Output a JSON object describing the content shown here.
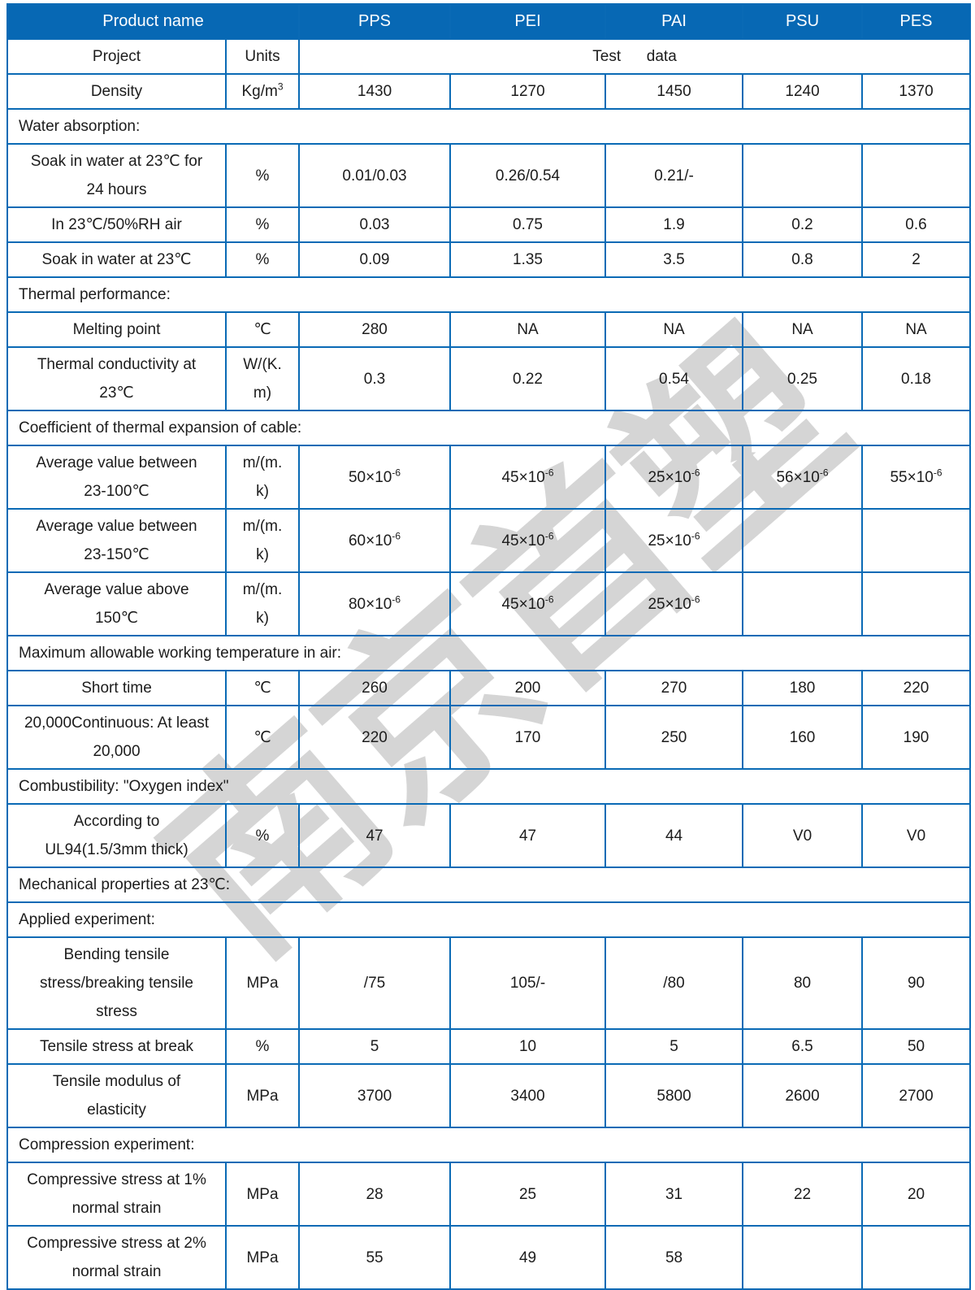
{
  "colors": {
    "header_bg": "#0768b4",
    "border": "#0a6ab5",
    "text": "#1c1c1c",
    "header_text": "#ffffff",
    "watermark": "#d5d5d5"
  },
  "watermark": {
    "text": "南京首塑"
  },
  "table": {
    "header": {
      "product_label": "Product name",
      "columns": [
        "PPS",
        "PEI",
        "PAI",
        "PSU",
        "PES"
      ]
    },
    "subheader": {
      "project": "Project",
      "units": "Units",
      "test_data": "Test      data"
    },
    "rows": [
      {
        "type": "data",
        "label": "Density",
        "unit": "Kg/m^3",
        "values": [
          "1430",
          "1270",
          "1450",
          "1240",
          "1370"
        ]
      },
      {
        "type": "section",
        "label": "Water absorption:"
      },
      {
        "type": "data",
        "label": "Soak in water at 23℃ for\n24 hours",
        "unit": "%",
        "values": [
          "0.01/0.03",
          "0.26/0.54",
          "0.21/-",
          "",
          ""
        ]
      },
      {
        "type": "data",
        "label": "In 23℃/50%RH air",
        "unit": "%",
        "values": [
          "0.03",
          "0.75",
          "1.9",
          "0.2",
          "0.6"
        ]
      },
      {
        "type": "data",
        "label": "Soak in water at 23℃",
        "unit": "%",
        "values": [
          "0.09",
          "1.35",
          "3.5",
          "0.8",
          "2"
        ]
      },
      {
        "type": "section",
        "label": "Thermal performance:"
      },
      {
        "type": "data",
        "label": "Melting point",
        "unit": "℃",
        "values": [
          "280",
          "NA",
          "NA",
          "NA",
          "NA"
        ]
      },
      {
        "type": "data",
        "label": "Thermal conductivity at\n23℃",
        "unit": "W/(K.\nm)",
        "values": [
          "0.3",
          "0.22",
          "0.54",
          "0.25",
          "0.18"
        ]
      },
      {
        "type": "section",
        "label": "Coefficient of thermal expansion of cable:"
      },
      {
        "type": "data",
        "label": "Average value between\n23-100℃",
        "unit": "m/(m.\nk)",
        "values": [
          "50×10^-6",
          "45×10^-6",
          "25×10^-6",
          "56×10^-6",
          "55×10^-6"
        ]
      },
      {
        "type": "data",
        "label": "Average value between\n23-150℃",
        "unit": "m/(m.\nk)",
        "values": [
          "60×10^-6",
          "45×10^-6",
          "25×10^-6",
          "",
          ""
        ]
      },
      {
        "type": "data",
        "label": "Average value above\n150℃",
        "unit": "m/(m.\nk)",
        "values": [
          "80×10^-6",
          "45×10^-6",
          "25×10^-6",
          "",
          ""
        ]
      },
      {
        "type": "section",
        "label": "Maximum allowable working temperature in air:"
      },
      {
        "type": "data",
        "label": "Short time",
        "unit": "℃",
        "values": [
          "260",
          "200",
          "270",
          "180",
          "220"
        ]
      },
      {
        "type": "data",
        "label": "20,000Continuous: At least\n20,000",
        "unit": "℃",
        "values": [
          "220",
          "170",
          "250",
          "160",
          "190"
        ]
      },
      {
        "type": "section",
        "label": "Combustibility: \"Oxygen index\""
      },
      {
        "type": "data",
        "label": "According to\nUL94(1.5/3mm thick)",
        "unit": "%",
        "values": [
          "47",
          "47",
          "44",
          "V0",
          "V0"
        ]
      },
      {
        "type": "section",
        "label": "Mechanical properties at 23℃:"
      },
      {
        "type": "section",
        "label": "Applied experiment:"
      },
      {
        "type": "data",
        "label": "Bending tensile\nstress/breaking tensile\nstress",
        "unit": "MPa",
        "values": [
          "/75",
          "105/-",
          "/80",
          "80",
          "90"
        ]
      },
      {
        "type": "data",
        "label": "Tensile stress at break",
        "unit": "%",
        "values": [
          "5",
          "10",
          "5",
          "6.5",
          "50"
        ]
      },
      {
        "type": "data",
        "label": "Tensile modulus of\nelasticity",
        "unit": "MPa",
        "values": [
          "3700",
          "3400",
          "5800",
          "2600",
          "2700"
        ]
      },
      {
        "type": "section",
        "label": "Compression experiment:"
      },
      {
        "type": "data",
        "label": "Compressive stress at 1%\nnormal strain",
        "unit": "MPa",
        "values": [
          "28",
          "25",
          "31",
          "22",
          "20"
        ]
      },
      {
        "type": "data",
        "label": "Compressive stress at 2%\nnormal strain",
        "unit": "MPa",
        "values": [
          "55",
          "49",
          "58",
          "",
          ""
        ]
      }
    ]
  }
}
